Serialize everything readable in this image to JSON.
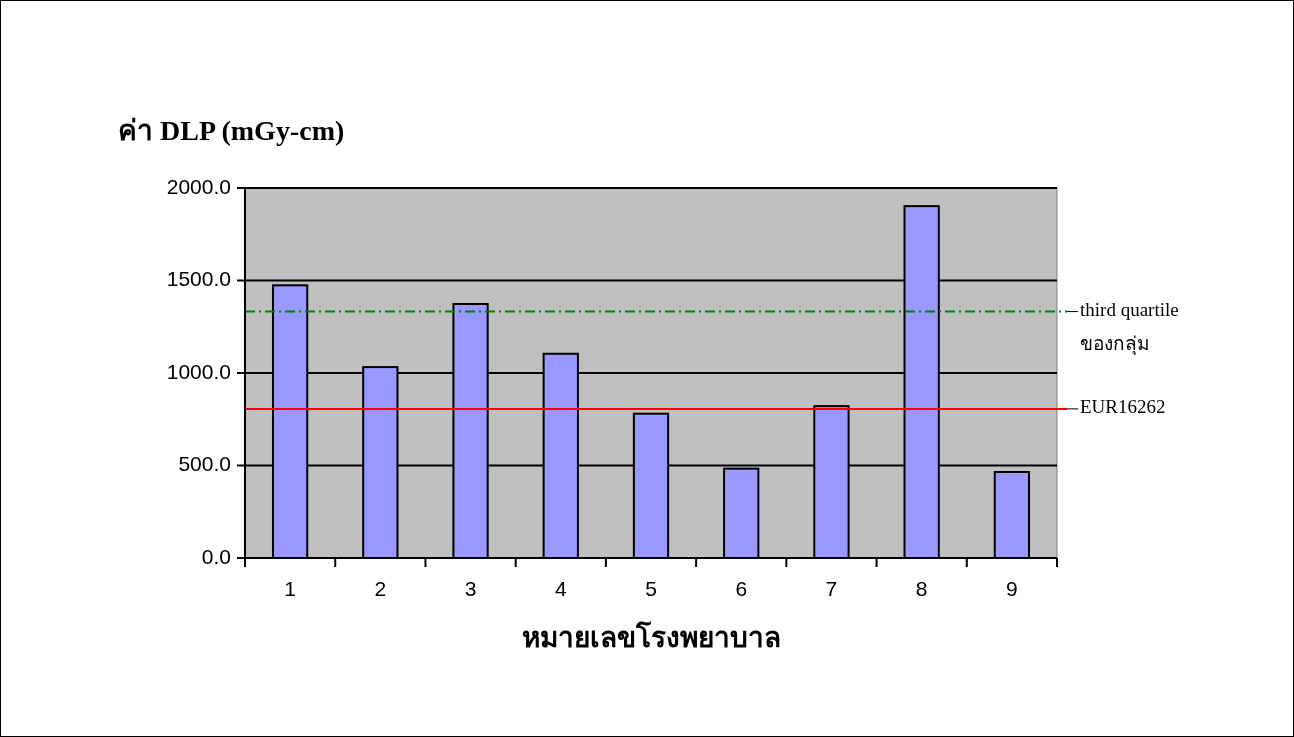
{
  "chart_data": {
    "type": "bar",
    "ylabel": "ค่า DLP (mGy-cm)",
    "xlabel": "หมายเลขโรงพยาบาล",
    "categories": [
      "1",
      "2",
      "3",
      "4",
      "5",
      "6",
      "7",
      "8",
      "9"
    ],
    "values": [
      1474,
      1032,
      1373,
      1104,
      780,
      483,
      821,
      1902,
      465
    ],
    "color": "#9999ff",
    "ylim": [
      0,
      2000
    ],
    "yticks": [
      {
        "value": 0,
        "label": "0.0"
      },
      {
        "value": 500,
        "label": "500.0"
      },
      {
        "value": 1000,
        "label": "1000.0"
      },
      {
        "value": 1500,
        "label": "1500.0"
      },
      {
        "value": 2000,
        "label": "2000.0"
      }
    ],
    "grid": "y",
    "ref_lines": [
      {
        "axis": "y",
        "value": 1332,
        "label": "third quartile ของกลุ่ม",
        "color": "#008000",
        "line_style": "dashdot"
      },
      {
        "axis": "y",
        "value": 806,
        "label": "EUR16262",
        "color": "#ff0000",
        "line_style": "solid"
      }
    ]
  }
}
